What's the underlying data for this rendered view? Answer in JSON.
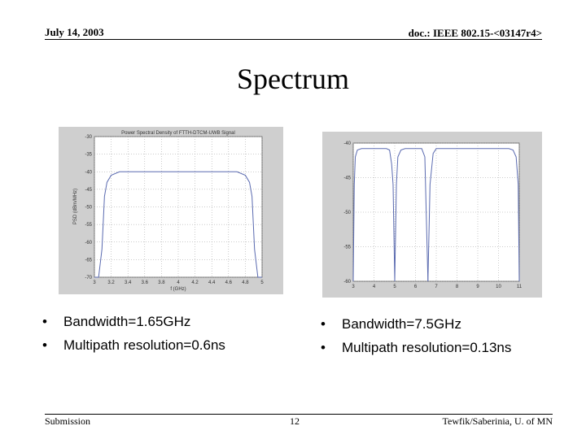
{
  "header": {
    "date": "July 14, 2003",
    "doc_id": "doc.: IEEE 802.15-<03147r4>"
  },
  "slide": {
    "title": "Spectrum"
  },
  "left_figure": {
    "plot_title": "Power Spectral Density of FTTH-DTCM-UWB Signal",
    "xlabel": "f (GHz)",
    "ylabel": "PSD (dBm/MHz)",
    "x_ticks": [
      "3",
      "3.2",
      "3.4",
      "3.6",
      "3.8",
      "4",
      "4.2",
      "4.4",
      "4.6",
      "4.8",
      "5"
    ],
    "y_ticks": [
      "-30",
      "-35",
      "-40",
      "-45",
      "-50",
      "-55",
      "-60",
      "-65",
      "-70"
    ],
    "chart_data": {
      "type": "line",
      "xlim": [
        3,
        5
      ],
      "ylim": [
        -70,
        -30
      ],
      "x": [
        3.0,
        3.05,
        3.09,
        3.12,
        3.15,
        3.2,
        3.3,
        3.5,
        4.0,
        4.5,
        4.7,
        4.8,
        4.85,
        4.88,
        4.91,
        4.95,
        5.0
      ],
      "y": [
        -70,
        -70,
        -62,
        -47,
        -43,
        -41,
        -40,
        -40,
        -40,
        -40,
        -40,
        -41,
        -43,
        -47,
        -62,
        -70,
        -70
      ],
      "grid": true
    },
    "colors": {
      "line": "#5a6ab0",
      "panel": "#cfcfcf"
    }
  },
  "right_figure": {
    "x_ticks": [
      "3",
      "4",
      "5",
      "6",
      "7",
      "8",
      "9",
      "10",
      "11"
    ],
    "y_ticks": [
      "-40",
      "-45",
      "-50",
      "-55",
      "-60"
    ],
    "chart_data": {
      "type": "line",
      "xlim": [
        3,
        11
      ],
      "ylim": [
        -60,
        -40
      ],
      "segments": [
        {
          "x": [
            3.0,
            3.05,
            3.1,
            3.2,
            3.4,
            4.0,
            4.6,
            4.75,
            4.85,
            4.92,
            5.0,
            5.08,
            5.15,
            5.3,
            5.5,
            6.0,
            6.3,
            6.45,
            6.6
          ],
          "y": [
            -60,
            -46,
            -42,
            -41,
            -40.8,
            -40.8,
            -40.8,
            -41,
            -43,
            -46,
            -60,
            -46,
            -42,
            -41,
            -40.8,
            -40.8,
            -40.8,
            -42,
            -60
          ]
        },
        {
          "x": [
            6.6,
            6.7,
            6.85,
            7.0,
            8.0,
            9.0,
            10.0,
            10.5,
            10.7,
            10.85,
            10.95,
            11.0
          ],
          "y": [
            -60,
            -46,
            -41.5,
            -40.8,
            -40.8,
            -40.8,
            -40.8,
            -40.8,
            -41,
            -42,
            -46,
            -60
          ]
        }
      ],
      "grid": true
    },
    "colors": {
      "line": "#5a6ab0",
      "panel": "#cfcfcf"
    }
  },
  "bullets_left": [
    "Bandwidth=1.65GHz",
    "Multipath resolution=0.6ns"
  ],
  "bullets_right": [
    "Bandwidth=7.5GHz",
    "Multipath resolution=0.13ns"
  ],
  "footer": {
    "left": "Submission",
    "page": "12",
    "right": "Tewfik/Saberinia, U. of MN"
  }
}
